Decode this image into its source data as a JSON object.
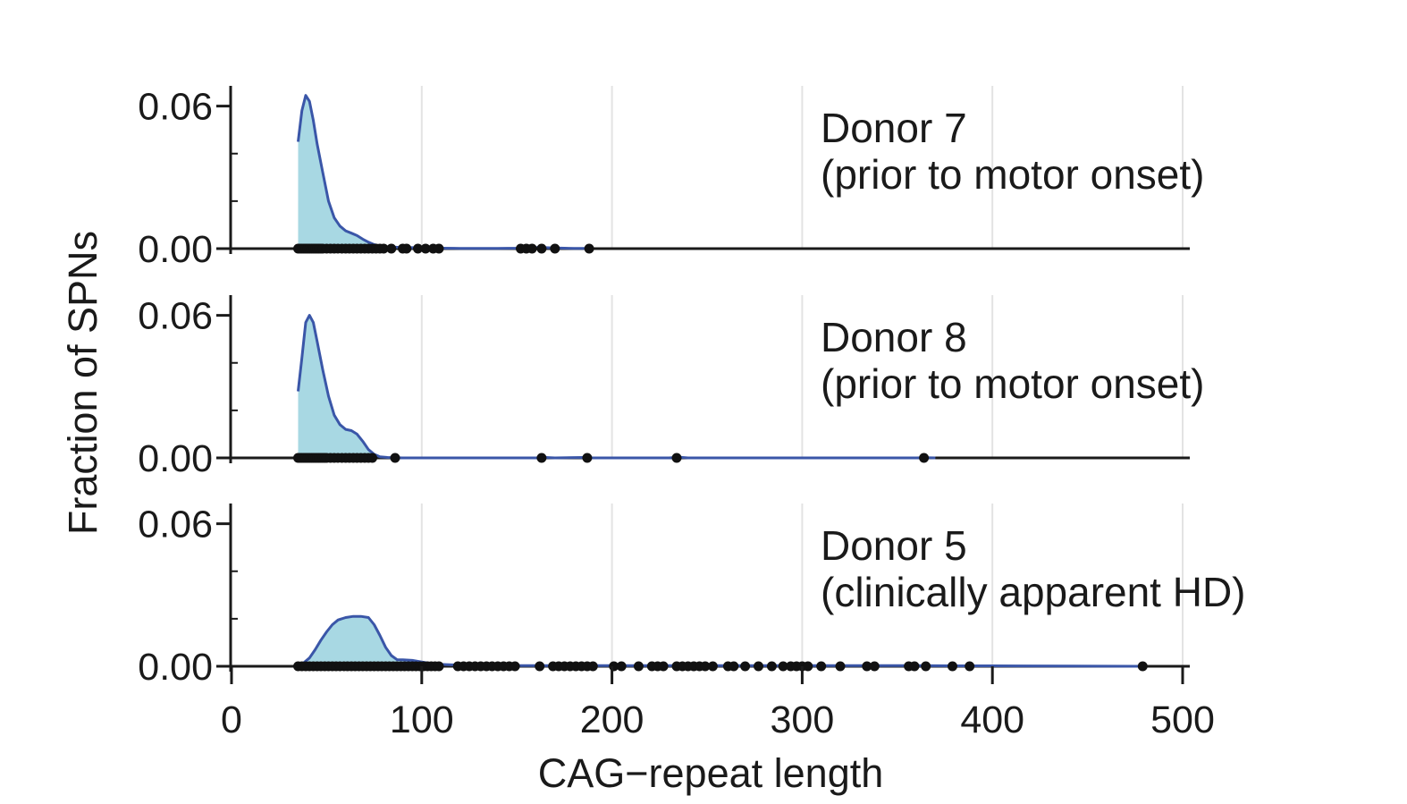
{
  "chart_data": {
    "type": "density",
    "xlabel": "CAG−repeat length",
    "ylabel": "Fraction of SPNs",
    "xlim": [
      0,
      500
    ],
    "x_ticks": [
      "0",
      "100",
      "200",
      "300",
      "400",
      "500"
    ],
    "x_tick_values": [
      0,
      100,
      200,
      300,
      400,
      500
    ],
    "ylim": [
      0,
      0.064
    ],
    "y_ticks": [
      "0.00",
      "0.06"
    ],
    "y_tick_values": [
      0.0,
      0.06
    ],
    "y_minor_ticks": [
      0.02,
      0.04
    ],
    "grid": "vertical",
    "colors": {
      "fill": "#a8d8e3",
      "line": "#3a56a8",
      "points": "#111111",
      "axis": "#1a1a1a",
      "grid": "#e3e3e3"
    },
    "panels": [
      {
        "label_line1": "Donor 7",
        "label_line2": "(prior to motor onset)",
        "density": {
          "x": [
            35,
            37,
            39,
            41,
            43,
            45,
            48,
            51,
            54,
            57,
            60,
            63,
            66,
            69,
            72,
            75,
            78,
            82,
            86,
            90,
            95,
            100,
            110,
            120,
            130,
            140,
            150,
            155,
            160,
            165,
            170,
            175,
            180,
            185,
            190
          ],
          "y": [
            0.045,
            0.058,
            0.0645,
            0.062,
            0.054,
            0.044,
            0.032,
            0.02,
            0.013,
            0.0095,
            0.0075,
            0.0065,
            0.0055,
            0.004,
            0.0027,
            0.0017,
            0.0011,
            0.0007,
            0.0006,
            0.0005,
            0.0004,
            0.0003,
            0.0002,
            0.0001,
            0.0001,
            0.0001,
            0.0002,
            0.0004,
            0.0005,
            0.0004,
            0.0003,
            0.0002,
            0.0001,
            0.0001,
            0.0
          ]
        },
        "points": [
          35,
          36,
          37,
          38,
          39,
          40,
          41,
          42,
          43,
          44,
          45,
          46,
          47,
          48,
          50,
          52,
          54,
          56,
          58,
          60,
          62,
          64,
          66,
          68,
          70,
          72,
          74,
          76,
          78,
          80,
          84,
          90,
          92,
          98,
          102,
          106,
          109,
          152,
          155,
          158,
          163,
          170,
          188
        ]
      },
      {
        "label_line1": "Donor 8",
        "label_line2": "(prior to motor onset)",
        "density": {
          "x": [
            35,
            37,
            39,
            41,
            43,
            45,
            48,
            51,
            54,
            57,
            60,
            63,
            66,
            69,
            72,
            75,
            78,
            82,
            86,
            90,
            95,
            100,
            120,
            140,
            160,
            165,
            170,
            185,
            190,
            200,
            230,
            235,
            240,
            300,
            360,
            365,
            370
          ],
          "y": [
            0.028,
            0.042,
            0.057,
            0.06,
            0.057,
            0.049,
            0.037,
            0.026,
            0.018,
            0.014,
            0.012,
            0.0115,
            0.01,
            0.007,
            0.0035,
            0.0015,
            0.0005,
            0.0002,
            0.0001,
            0.0,
            0.0,
            0.0,
            0.0,
            0.0,
            0.0,
            0.0002,
            0.0,
            0.0002,
            0.0,
            0.0,
            0.0,
            0.0003,
            0.0,
            0.0,
            0.0,
            0.0001,
            0.0
          ]
        },
        "points": [
          35,
          36,
          37,
          38,
          39,
          40,
          41,
          42,
          43,
          44,
          45,
          46,
          47,
          48,
          49,
          50,
          52,
          54,
          56,
          58,
          60,
          62,
          64,
          66,
          68,
          70,
          72,
          74,
          86,
          163,
          187,
          234,
          364
        ]
      },
      {
        "label_line1": "Donor 5",
        "label_line2": "(clinically apparent HD)",
        "density": {
          "x": [
            35,
            38,
            41,
            44,
            47,
            50,
            53,
            56,
            60,
            64,
            68,
            72,
            75,
            78,
            81,
            84,
            87,
            90,
            95,
            100,
            105,
            110,
            120,
            130,
            140,
            150,
            170,
            200,
            230,
            250,
            300,
            340,
            360,
            380,
            400,
            440,
            480
          ],
          "y": [
            0.0003,
            0.0015,
            0.0035,
            0.007,
            0.011,
            0.0145,
            0.0175,
            0.0195,
            0.0205,
            0.021,
            0.021,
            0.0205,
            0.0175,
            0.013,
            0.008,
            0.0045,
            0.0028,
            0.0027,
            0.0025,
            0.0018,
            0.0012,
            0.0008,
            0.0005,
            0.0005,
            0.0004,
            0.0003,
            0.0003,
            0.0003,
            0.0003,
            0.0003,
            0.0003,
            0.0003,
            0.0003,
            0.0002,
            0.0002,
            0.0001,
            0.0
          ]
        },
        "points": [
          35,
          37,
          39,
          41,
          43,
          45,
          47,
          49,
          51,
          53,
          55,
          57,
          59,
          61,
          63,
          65,
          67,
          69,
          71,
          73,
          75,
          77,
          79,
          81,
          83,
          85,
          87,
          89,
          91,
          93,
          95,
          97,
          99,
          101,
          103,
          105,
          107,
          109,
          119,
          122,
          125,
          128,
          131,
          134,
          137,
          140,
          143,
          146,
          149,
          162,
          169,
          172,
          175,
          178,
          181,
          184,
          187,
          190,
          201,
          205,
          214,
          221,
          224,
          227,
          234,
          237,
          240,
          243,
          246,
          249,
          253,
          261,
          264,
          270,
          277,
          284,
          290,
          294,
          297,
          300,
          303,
          310,
          320,
          334,
          338,
          356,
          359,
          365,
          379,
          388,
          479
        ]
      }
    ]
  }
}
